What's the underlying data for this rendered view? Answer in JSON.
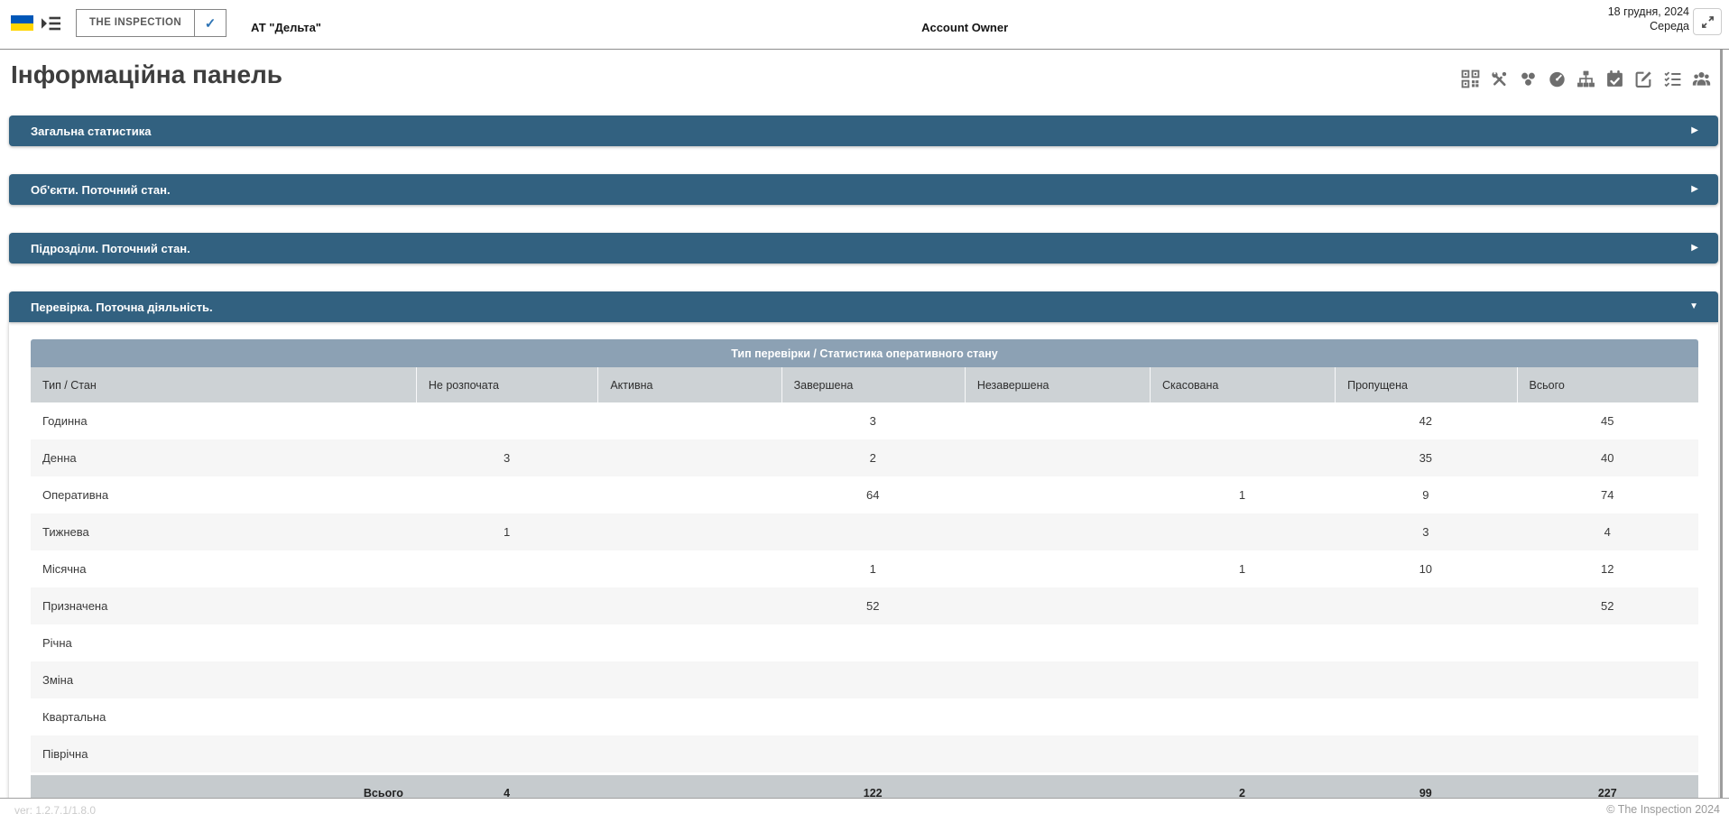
{
  "top_bar": {
    "brand": "THE INSPECTION",
    "brand_check": "✓",
    "company": "АТ \"Дельта\"",
    "account_owner": "Account Owner",
    "date": "18 грудня, 2024",
    "weekday": "Середа"
  },
  "page": {
    "title": "Інформаційна панель",
    "toolbar_icons": [
      "qr-code",
      "tools",
      "objects",
      "gauge",
      "sitemap",
      "calendar-check",
      "edit",
      "checklist",
      "users"
    ]
  },
  "panels": [
    {
      "title": "Загальна статистика",
      "expanded": false
    },
    {
      "title": "Об'єкти. Поточний стан.",
      "expanded": false
    },
    {
      "title": "Підрозділи. Поточний стан.",
      "expanded": false
    },
    {
      "title": "Перевірка. Поточна діяльність.",
      "expanded": true
    }
  ],
  "table": {
    "title": "Тип перевірки / Статистика оперативного стану",
    "columns": [
      "Тип / Стан",
      "Не розпочата",
      "Активна",
      "Завершена",
      "Незавершена",
      "Скасована",
      "Пропущена",
      "Всього"
    ],
    "rows": [
      [
        "Годинна",
        "",
        "",
        "3",
        "",
        "",
        "42",
        "45"
      ],
      [
        "Денна",
        "3",
        "",
        "2",
        "",
        "",
        "35",
        "40"
      ],
      [
        "Оперативна",
        "",
        "",
        "64",
        "",
        "1",
        "9",
        "74"
      ],
      [
        "Тижнева",
        "1",
        "",
        "",
        "",
        "",
        "3",
        "4"
      ],
      [
        "Місячна",
        "",
        "",
        "1",
        "",
        "1",
        "10",
        "12"
      ],
      [
        "Призначена",
        "",
        "",
        "52",
        "",
        "",
        "",
        "52"
      ],
      [
        "Річна",
        "",
        "",
        "",
        "",
        "",
        "",
        ""
      ],
      [
        "Зміна",
        "",
        "",
        "",
        "",
        "",
        "",
        ""
      ],
      [
        "Квартальна",
        "",
        "",
        "",
        "",
        "",
        "",
        ""
      ],
      [
        "Піврічна",
        "",
        "",
        "",
        "",
        "",
        "",
        ""
      ]
    ],
    "footer": [
      "Всього",
      "4",
      "",
      "122",
      "",
      "2",
      "99",
      "227"
    ]
  },
  "footer": {
    "version": "ver: 1.2.7.1/1.8.0",
    "copyright": "© The Inspection 2024"
  },
  "colors": {
    "panel_header": "#326180",
    "table_title_bar": "#8CA1B4",
    "table_header_row": "#CDD2D5",
    "table_footer_row": "#C6CBCE",
    "check_blue": "#2E74B5",
    "flag_blue": "#0057B8",
    "flag_yellow": "#FFD500"
  }
}
